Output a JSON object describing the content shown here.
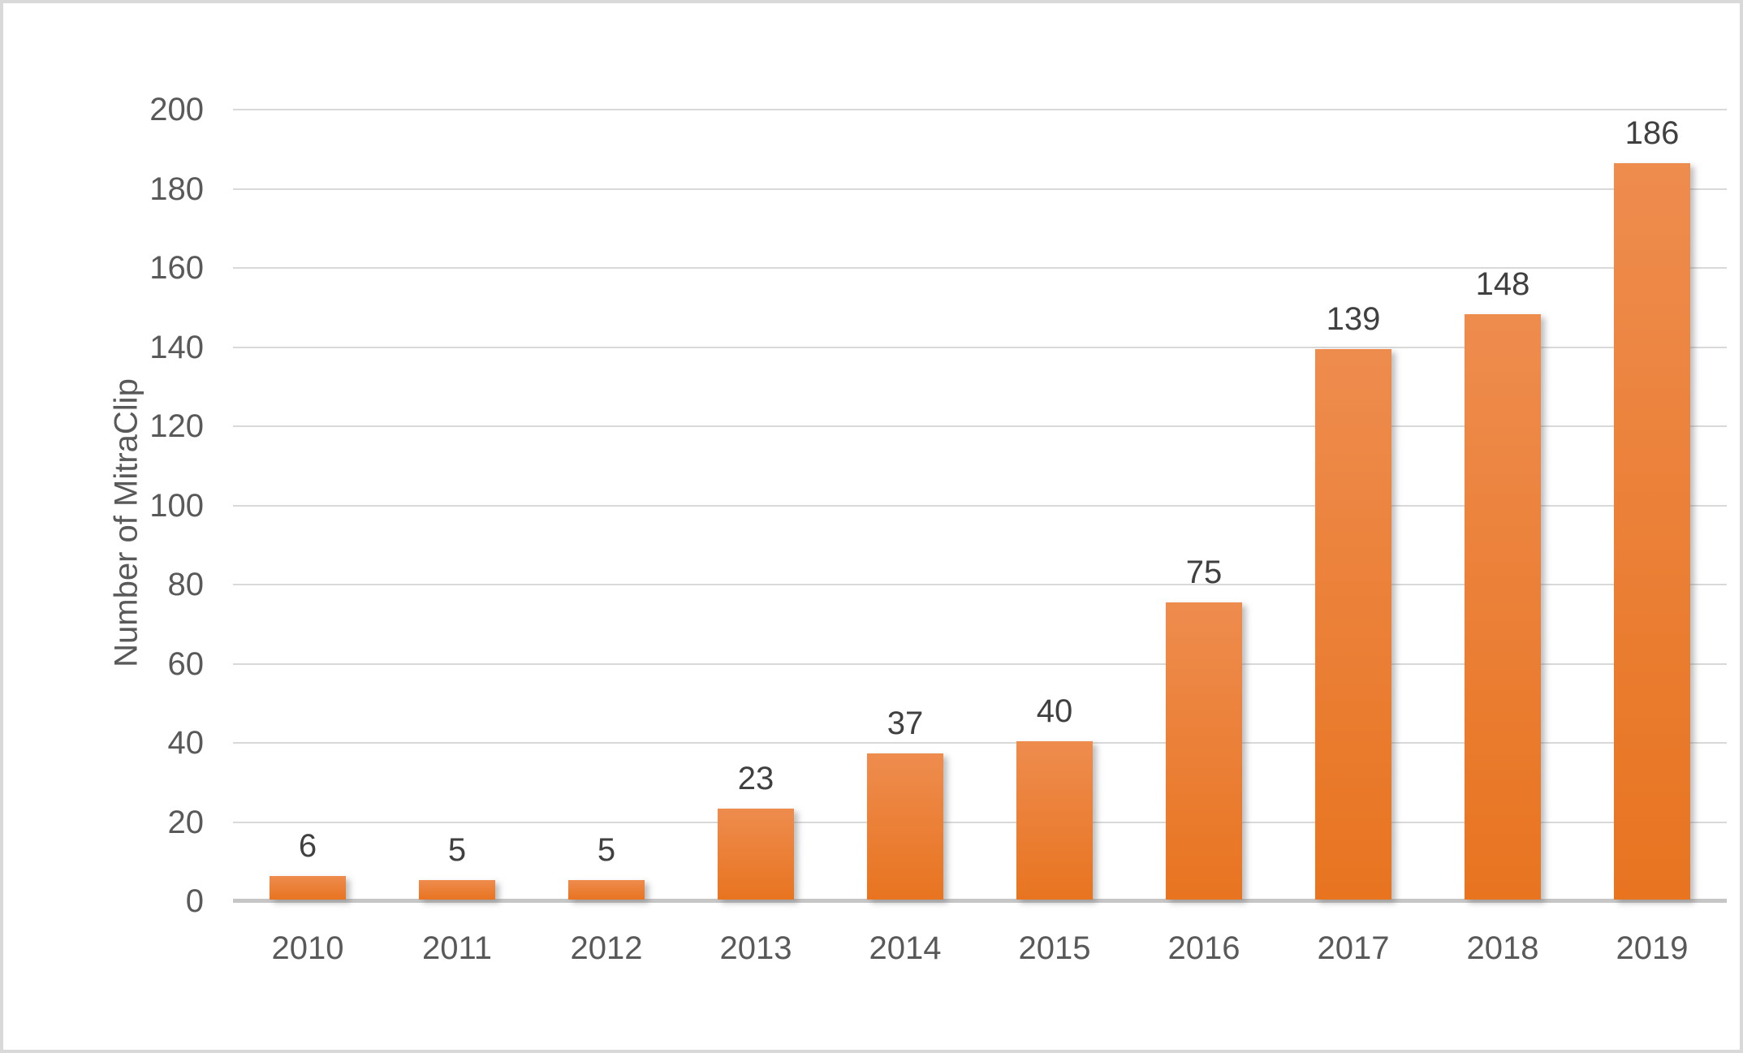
{
  "chart_data": {
    "type": "bar",
    "categories": [
      "2010",
      "2011",
      "2012",
      "2013",
      "2014",
      "2015",
      "2016",
      "2017",
      "2018",
      "2019"
    ],
    "values": [
      6,
      5,
      5,
      23,
      37,
      40,
      75,
      139,
      148,
      186
    ],
    "title": "",
    "xlabel": "",
    "ylabel": "Number of MitraClip",
    "ylim": [
      0,
      200
    ],
    "ytick_step": 20,
    "ytick_labels": [
      "0",
      "20",
      "40",
      "60",
      "80",
      "100",
      "120",
      "140",
      "160",
      "180",
      "200"
    ],
    "grid": true,
    "legend": false,
    "data_labels_shown": true,
    "colors": {
      "bar_gradient_top": "#EE8C4E",
      "bar_gradient_bottom": "#E87420",
      "gridline": "#D9D9D9",
      "axis_line": "#C6C6C6",
      "tick_text": "#595959",
      "data_label_text": "#404040",
      "canvas_border": "#D9D9D9",
      "background": "#FFFFFF"
    }
  }
}
